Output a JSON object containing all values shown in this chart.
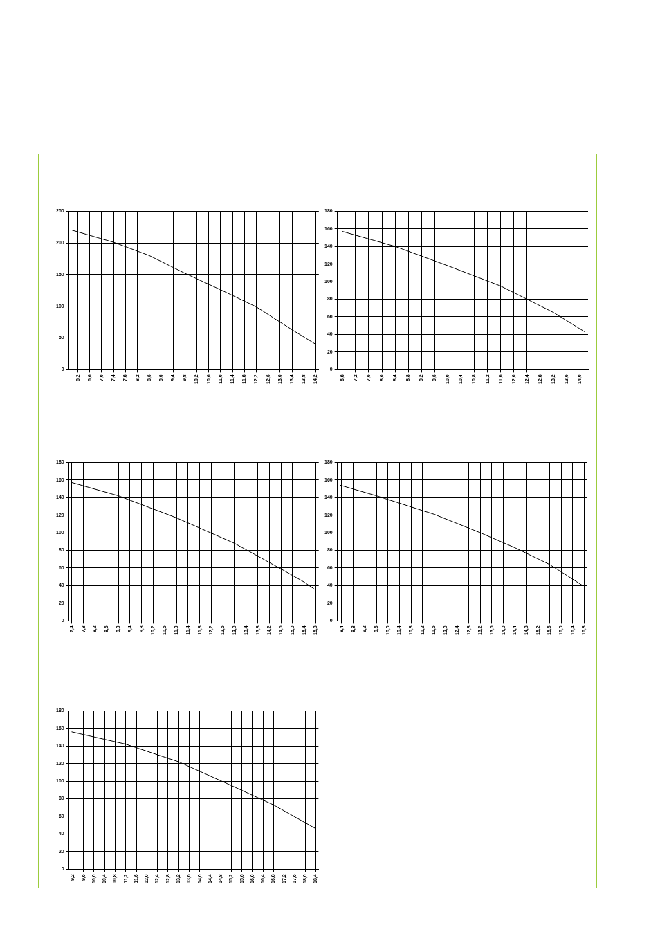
{
  "chart_data": [
    {
      "type": "line",
      "x": [
        6.0,
        7.4,
        8.6,
        9.8,
        11.0,
        12.2,
        13.4,
        14.2
      ],
      "values": [
        220,
        201,
        180,
        152,
        126,
        99,
        63,
        40
      ],
      "color": "#000000",
      "xlim": [
        5.9,
        14.3
      ],
      "ylim": [
        0,
        250
      ],
      "yticks": [
        0,
        50,
        100,
        150,
        200,
        250
      ],
      "grid": true,
      "marker": "none",
      "xticks": [
        {
          "value": 6.2,
          "label": "6,2"
        },
        {
          "value": 6.6,
          "label": "6,6"
        },
        {
          "value": 7.0,
          "label": "7,0"
        },
        {
          "value": 7.4,
          "label": "7,4"
        },
        {
          "value": 7.8,
          "label": "7,8"
        },
        {
          "value": 8.2,
          "label": "8,2"
        },
        {
          "value": 8.6,
          "label": "8,6"
        },
        {
          "value": 9.0,
          "label": "9,0"
        },
        {
          "value": 9.4,
          "label": "9,4"
        },
        {
          "value": 9.8,
          "label": "9,8"
        },
        {
          "value": 10.2,
          "label": "10,2"
        },
        {
          "value": 10.6,
          "label": "10,6"
        },
        {
          "value": 11.0,
          "label": "11,0"
        },
        {
          "value": 11.4,
          "label": "11,4"
        },
        {
          "value": 11.8,
          "label": "11,8"
        },
        {
          "value": 12.2,
          "label": "12,2"
        },
        {
          "value": 12.6,
          "label": "12,6"
        },
        {
          "value": 13.0,
          "label": "13,0"
        },
        {
          "value": 13.4,
          "label": "13,4"
        },
        {
          "value": 13.8,
          "label": "13,8"
        },
        {
          "value": 14.2,
          "label": "14,2"
        }
      ]
    },
    {
      "type": "line",
      "x": [
        6.8,
        8.4,
        10.0,
        11.6,
        13.2,
        14.15
      ],
      "values": [
        157,
        140,
        118,
        95,
        65,
        43
      ],
      "color": "#000000",
      "xlim": [
        6.65,
        14.25
      ],
      "ylim": [
        0,
        180
      ],
      "yticks": [
        0,
        20,
        40,
        60,
        80,
        100,
        120,
        140,
        160,
        180
      ],
      "grid": true,
      "marker": "none",
      "xticks": [
        {
          "value": 6.8,
          "label": "6,8"
        },
        {
          "value": 7.2,
          "label": "7,2"
        },
        {
          "value": 7.6,
          "label": "7,6"
        },
        {
          "value": 8.0,
          "label": "8,0"
        },
        {
          "value": 8.4,
          "label": "8,4"
        },
        {
          "value": 8.8,
          "label": "8,8"
        },
        {
          "value": 9.2,
          "label": "9,2"
        },
        {
          "value": 9.6,
          "label": "9,6"
        },
        {
          "value": 10.0,
          "label": "10,0"
        },
        {
          "value": 10.4,
          "label": "10,4"
        },
        {
          "value": 10.8,
          "label": "10,8"
        },
        {
          "value": 11.2,
          "label": "11,2"
        },
        {
          "value": 11.6,
          "label": "11,6"
        },
        {
          "value": 12.0,
          "label": "12,0"
        },
        {
          "value": 12.4,
          "label": "12,4"
        },
        {
          "value": 12.8,
          "label": "12,8"
        },
        {
          "value": 13.2,
          "label": "13,2"
        },
        {
          "value": 13.6,
          "label": "13,6"
        },
        {
          "value": 14.0,
          "label": "14,0"
        }
      ]
    },
    {
      "type": "line",
      "x": [
        7.4,
        9.0,
        11.0,
        13.0,
        14.6,
        15.4,
        15.75
      ],
      "values": [
        157,
        142,
        117,
        88,
        59,
        44,
        36
      ],
      "color": "#000000",
      "xlim": [
        7.3,
        15.9
      ],
      "ylim": [
        0,
        180
      ],
      "yticks": [
        0,
        20,
        40,
        60,
        80,
        100,
        120,
        140,
        160,
        180
      ],
      "grid": true,
      "marker": "none",
      "xticks": [
        {
          "value": 7.4,
          "label": "7,4"
        },
        {
          "value": 7.8,
          "label": "7,8"
        },
        {
          "value": 8.2,
          "label": "8,2"
        },
        {
          "value": 8.6,
          "label": "8,6"
        },
        {
          "value": 9.0,
          "label": "9,0"
        },
        {
          "value": 9.4,
          "label": "9,4"
        },
        {
          "value": 9.8,
          "label": "9,8"
        },
        {
          "value": 10.2,
          "label": "10,2"
        },
        {
          "value": 10.6,
          "label": "10,6"
        },
        {
          "value": 11.0,
          "label": "11,0"
        },
        {
          "value": 11.4,
          "label": "11,4"
        },
        {
          "value": 11.8,
          "label": "11,8"
        },
        {
          "value": 12.2,
          "label": "12,2"
        },
        {
          "value": 12.6,
          "label": "12,6"
        },
        {
          "value": 13.0,
          "label": "13,0"
        },
        {
          "value": 13.4,
          "label": "13,4"
        },
        {
          "value": 13.8,
          "label": "13,8"
        },
        {
          "value": 14.2,
          "label": "14,2"
        },
        {
          "value": 14.6,
          "label": "14,6"
        },
        {
          "value": 15.0,
          "label": "15,0"
        },
        {
          "value": 15.4,
          "label": "15,4"
        },
        {
          "value": 15.8,
          "label": "15,8"
        }
      ]
    },
    {
      "type": "line",
      "x": [
        8.35,
        9.6,
        11.6,
        13.2,
        14.4,
        15.6,
        16.75
      ],
      "values": [
        154,
        142,
        121,
        100,
        83,
        64,
        40
      ],
      "color": "#000000",
      "xlim": [
        8.25,
        16.9
      ],
      "ylim": [
        0,
        180
      ],
      "yticks": [
        0,
        20,
        40,
        60,
        80,
        100,
        120,
        140,
        160,
        180
      ],
      "grid": true,
      "marker": "none",
      "xticks": [
        {
          "value": 8.4,
          "label": "8,4"
        },
        {
          "value": 8.8,
          "label": "8,8"
        },
        {
          "value": 9.2,
          "label": "9,2"
        },
        {
          "value": 9.6,
          "label": "9,6"
        },
        {
          "value": 10.0,
          "label": "10,0"
        },
        {
          "value": 10.4,
          "label": "10,4"
        },
        {
          "value": 10.8,
          "label": "10,8"
        },
        {
          "value": 11.2,
          "label": "11,2"
        },
        {
          "value": 11.6,
          "label": "11,6"
        },
        {
          "value": 12.0,
          "label": "12,0"
        },
        {
          "value": 12.4,
          "label": "12,4"
        },
        {
          "value": 12.8,
          "label": "12,8"
        },
        {
          "value": 13.2,
          "label": "13,2"
        },
        {
          "value": 13.6,
          "label": "13,6"
        },
        {
          "value": 14.0,
          "label": "14,0"
        },
        {
          "value": 14.4,
          "label": "14,4"
        },
        {
          "value": 14.8,
          "label": "14,8"
        },
        {
          "value": 15.2,
          "label": "15,2"
        },
        {
          "value": 15.6,
          "label": "15,6"
        },
        {
          "value": 16.0,
          "label": "16,0"
        },
        {
          "value": 16.4,
          "label": "16,4"
        },
        {
          "value": 16.8,
          "label": "16,8"
        }
      ]
    },
    {
      "type": "line",
      "x": [
        9.15,
        11.2,
        13.2,
        15.2,
        16.8,
        18.4
      ],
      "values": [
        156,
        142,
        122,
        95,
        73,
        46
      ],
      "color": "#000000",
      "xlim": [
        9.05,
        18.5
      ],
      "ylim": [
        0,
        180
      ],
      "yticks": [
        0,
        20,
        40,
        60,
        80,
        100,
        120,
        140,
        160,
        180
      ],
      "grid": true,
      "marker": "none",
      "xticks": [
        {
          "value": 9.2,
          "label": "9,2"
        },
        {
          "value": 9.6,
          "label": "9,6"
        },
        {
          "value": 10.0,
          "label": "10,0"
        },
        {
          "value": 10.4,
          "label": "10,4"
        },
        {
          "value": 10.8,
          "label": "10,8"
        },
        {
          "value": 11.2,
          "label": "11,2"
        },
        {
          "value": 11.6,
          "label": "11,6"
        },
        {
          "value": 12.0,
          "label": "12,0"
        },
        {
          "value": 12.4,
          "label": "12,4"
        },
        {
          "value": 12.8,
          "label": "12,8"
        },
        {
          "value": 13.2,
          "label": "13,2"
        },
        {
          "value": 13.6,
          "label": "13,6"
        },
        {
          "value": 14.0,
          "label": "14,0"
        },
        {
          "value": 14.4,
          "label": "14,4"
        },
        {
          "value": 14.8,
          "label": "14,8"
        },
        {
          "value": 15.2,
          "label": "15,2"
        },
        {
          "value": 15.6,
          "label": "15,6"
        },
        {
          "value": 16.0,
          "label": "16,0"
        },
        {
          "value": 16.4,
          "label": "16,4"
        },
        {
          "value": 16.8,
          "label": "16,8"
        },
        {
          "value": 17.2,
          "label": "17,2"
        },
        {
          "value": 17.6,
          "label": "17,6"
        },
        {
          "value": 18.0,
          "label": "18,0"
        },
        {
          "value": 18.4,
          "label": "18,4"
        }
      ]
    }
  ]
}
